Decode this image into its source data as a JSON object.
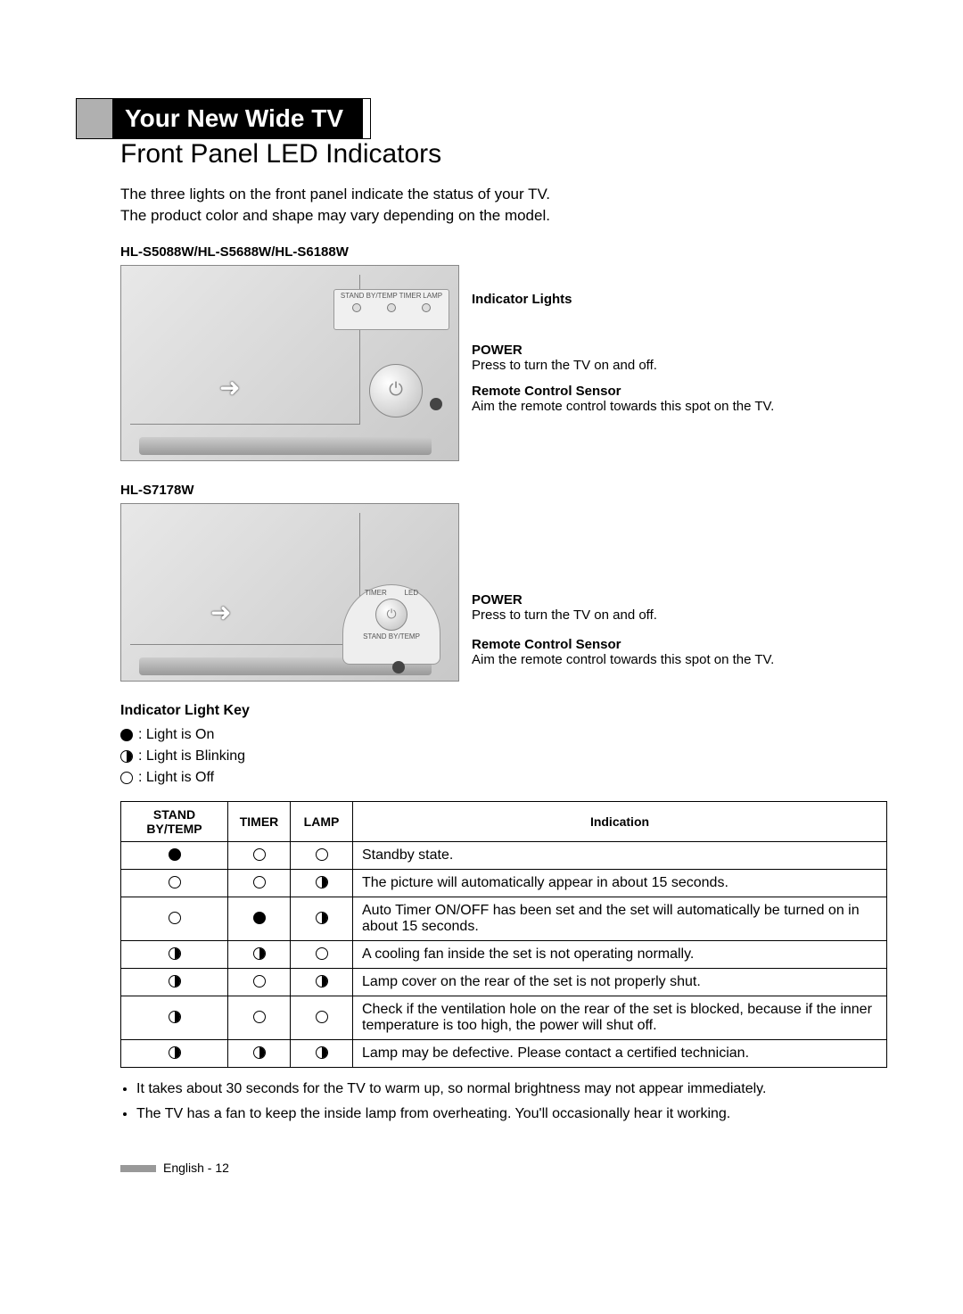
{
  "title": "Your New Wide TV",
  "section_heading": "Front Panel LED Indicators",
  "intro_line1": "The three lights on the front panel indicate the status of your TV.",
  "intro_line2": "The product color and shape may vary depending on the model.",
  "model1_label": "HL-S5088W/HL-S5688W/HL-S6188W",
  "model2_label": "HL-S7178W",
  "panel_labels": {
    "standby": "STAND BY/TEMP",
    "timer": "TIMER",
    "lamp": "LAMP",
    "led": "LED"
  },
  "callouts": {
    "indicator_lights": "Indicator Lights",
    "power_title": "POWER",
    "power_desc": "Press to turn the TV on and off.",
    "remote_title": "Remote Control Sensor",
    "remote_desc": "Aim the remote control towards this spot on the TV."
  },
  "key": {
    "heading": "Indicator Light Key",
    "on": ": Light is On",
    "blink": ": Light is Blinking",
    "off": ": Light is Off"
  },
  "table": {
    "headers": {
      "standby": "STAND BY/TEMP",
      "timer": "TIMER",
      "lamp": "LAMP",
      "indication": "Indication"
    },
    "rows": [
      {
        "s": "on",
        "t": "off",
        "l": "off",
        "text": "Standby state."
      },
      {
        "s": "off",
        "t": "off",
        "l": "blink",
        "text": "The picture will automatically appear in about 15 seconds."
      },
      {
        "s": "off",
        "t": "on",
        "l": "blink",
        "text": "Auto Timer ON/OFF has been set and the set will automatically be turned on in about 15 seconds."
      },
      {
        "s": "blink",
        "t": "blink",
        "l": "off",
        "text": "A cooling fan inside the set is not operating normally."
      },
      {
        "s": "blink",
        "t": "off",
        "l": "blink",
        "text": "Lamp cover on the rear of the set is not properly shut."
      },
      {
        "s": "blink",
        "t": "off",
        "l": "off",
        "text": "Check if the ventilation hole on the rear of the set is blocked, because if the inner temperature is too high, the power will shut off."
      },
      {
        "s": "blink",
        "t": "blink",
        "l": "blink",
        "text": "Lamp may be defective. Please contact a certified technician."
      }
    ]
  },
  "notes": [
    "It takes about 30 seconds for the TV to warm up, so normal brightness may not appear immediately.",
    "The TV has a fan to keep the inside lamp from overheating. You'll occasionally hear it working."
  ],
  "footer": "English - 12"
}
